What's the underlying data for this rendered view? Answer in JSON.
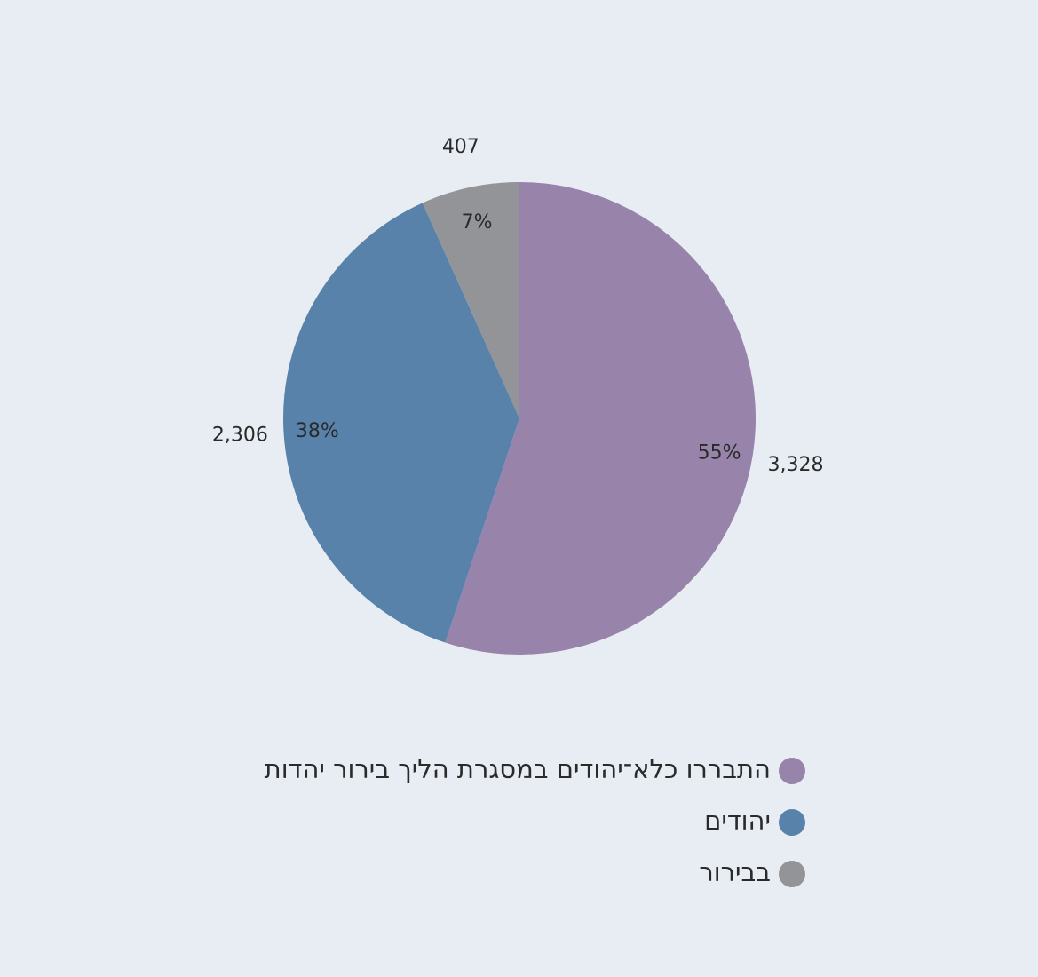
{
  "chart_data": {
    "type": "pie",
    "categories": [
      "התבררו כלא־יהודים במסגרת הליך בירור יהדות",
      "יהודים",
      "בבירור"
    ],
    "values": [
      3328,
      2306,
      407
    ],
    "value_labels": [
      "3,328",
      "2,306",
      "407"
    ],
    "percents": [
      55,
      38,
      7
    ],
    "percent_labels": [
      "55%",
      "38%",
      "7%"
    ],
    "colors": [
      "#9884aa",
      "#5882aa",
      "#939497"
    ],
    "legend": "bottom"
  }
}
